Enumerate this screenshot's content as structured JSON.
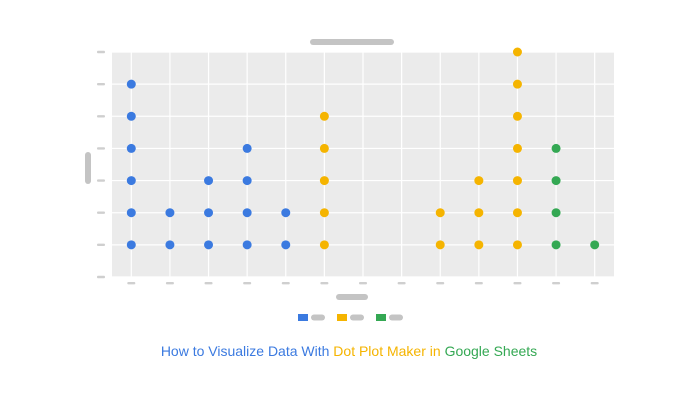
{
  "chart_data": {
    "type": "scatter",
    "subtype": "dot-plot",
    "title": "",
    "xlabel": "",
    "ylabel": "",
    "grid": true,
    "background": "#ebebeb",
    "ylim": [
      0,
      7
    ],
    "xlim": [
      0.5,
      13.5
    ],
    "x_ticks": [
      1,
      2,
      3,
      4,
      5,
      6,
      7,
      8,
      9,
      10,
      11,
      12,
      13
    ],
    "y_ticks": [
      0,
      1,
      2,
      3,
      4,
      5,
      6,
      7
    ],
    "legend_position": "bottom",
    "series": [
      {
        "color": "#3b7ae0",
        "x": [
          1,
          2,
          3,
          4,
          5
        ],
        "values": [
          6,
          2,
          3,
          4,
          2
        ]
      },
      {
        "color": "#f5b400",
        "x": [
          6,
          9,
          10,
          11
        ],
        "values": [
          5,
          2,
          3,
          7
        ]
      },
      {
        "color": "#34a853",
        "x": [
          12,
          13
        ],
        "values": [
          4,
          1
        ]
      }
    ]
  },
  "caption": {
    "part1": "How to Visualize Data With ",
    "part2": "Dot Plot Maker in ",
    "part3": "Google Sheets"
  },
  "colors": {
    "blue": "#3b7ae0",
    "yellow": "#f5b400",
    "green": "#34a853",
    "placeholder": "#c4c4c4",
    "grid": "#ffffff"
  }
}
